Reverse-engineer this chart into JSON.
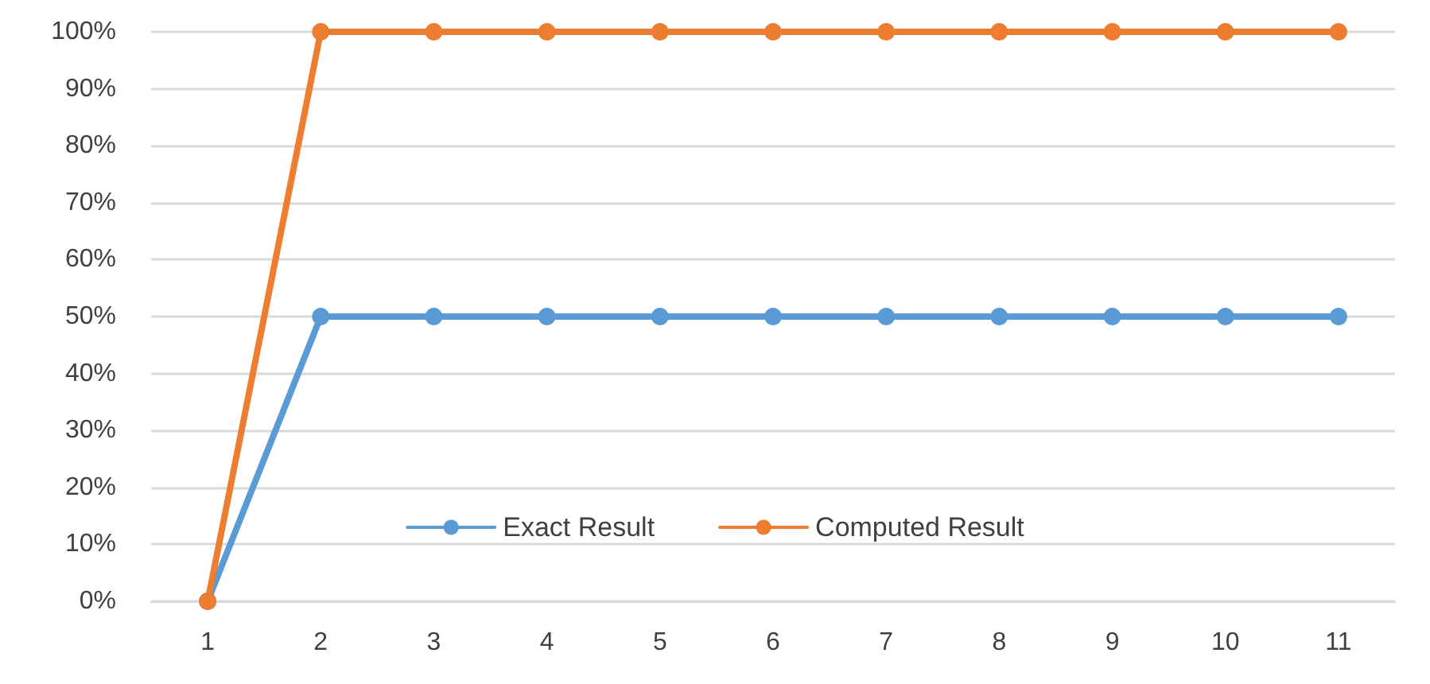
{
  "chart_data": {
    "type": "line",
    "categories": [
      "1",
      "2",
      "3",
      "4",
      "5",
      "6",
      "7",
      "8",
      "9",
      "10",
      "11"
    ],
    "series": [
      {
        "name": "Exact Result",
        "color": "#5b9bd5",
        "values": [
          0,
          50,
          50,
          50,
          50,
          50,
          50,
          50,
          50,
          50,
          50
        ]
      },
      {
        "name": "Computed Result",
        "color": "#ed7d31",
        "values": [
          0,
          100,
          100,
          100,
          100,
          100,
          100,
          100,
          100,
          100,
          100
        ]
      }
    ],
    "ylim": [
      0,
      100
    ],
    "yticks": [
      {
        "value": 0,
        "label": "0%"
      },
      {
        "value": 10,
        "label": "10%"
      },
      {
        "value": 20,
        "label": "20%"
      },
      {
        "value": 30,
        "label": "30%"
      },
      {
        "value": 40,
        "label": "40%"
      },
      {
        "value": 50,
        "label": "50%"
      },
      {
        "value": 60,
        "label": "60%"
      },
      {
        "value": 70,
        "label": "70%"
      },
      {
        "value": 80,
        "label": "80%"
      },
      {
        "value": 90,
        "label": "90%"
      },
      {
        "value": 100,
        "label": "100%"
      }
    ],
    "grid": "y",
    "legend": "bottom",
    "marker": "circle",
    "line_style": "solid"
  }
}
